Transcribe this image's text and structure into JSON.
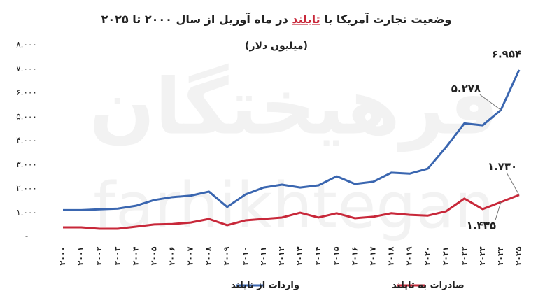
{
  "chart_data": {
    "type": "line",
    "title": [
      "وضعیت تجارت آمریکا با ",
      "تایلند",
      " در ماه آوریل از سال ۲۰۰۰ تا ۲۰۲۵"
    ],
    "subtitle": "(میلیون دلار)",
    "watermark": [
      "فرهیختگان",
      "farhikhtegan"
    ],
    "categories": [
      "۲۰۰۰",
      "۲۰۰۱",
      "۲۰۰۲",
      "۲۰۰۳",
      "۲۰۰۴",
      "۲۰۰۵",
      "۲۰۰۶",
      "۲۰۰۷",
      "۲۰۰۸",
      "۲۰۰۹",
      "۲۰۱۰",
      "۲۰۱۱",
      "۲۰۱۲",
      "۲۰۱۳",
      "۲۰۱۴",
      "۲۰۱۵",
      "۲۰۱۶",
      "۲۰۱۷",
      "۲۰۱۸",
      "۲۰۱۹",
      "۲۰۲۰",
      "۲۰۲۱",
      "۲۰۲۲",
      "۲۰۲۳",
      "۲۰۲۴",
      "۲۰۲۵"
    ],
    "series": [
      {
        "name": "واردات از تایلند",
        "color": "#3a66b0",
        "values": [
          1100,
          1100,
          1130,
          1160,
          1280,
          1520,
          1640,
          1700,
          1870,
          1230,
          1750,
          2040,
          2160,
          2040,
          2130,
          2510,
          2190,
          2280,
          2660,
          2620,
          2830,
          3730,
          4720,
          4640,
          5278,
          6954
        ],
        "value_labels": [
          null,
          null,
          null,
          null,
          null,
          null,
          null,
          null,
          null,
          null,
          null,
          null,
          null,
          null,
          null,
          null,
          null,
          null,
          null,
          null,
          null,
          null,
          null,
          null,
          "۵.۲۷۸",
          "۶.۹۵۴"
        ]
      },
      {
        "name": "صادرات به تایلند",
        "color": "#c8283a",
        "values": [
          380,
          380,
          320,
          320,
          410,
          500,
          520,
          580,
          730,
          470,
          670,
          730,
          790,
          990,
          790,
          970,
          760,
          820,
          970,
          900,
          870,
          1050,
          1580,
          1140,
          1435,
          1730
        ],
        "value_labels": [
          null,
          null,
          null,
          null,
          null,
          null,
          null,
          null,
          null,
          null,
          null,
          null,
          null,
          null,
          null,
          null,
          null,
          null,
          null,
          null,
          null,
          null,
          null,
          null,
          "۱.۴۳۵",
          "۱.۷۳۰"
        ]
      }
    ],
    "ylim": [
      0,
      8000
    ],
    "yticks": [
      {
        "value": 0,
        "label": "-"
      },
      {
        "value": 1000,
        "label": "۱.۰۰۰"
      },
      {
        "value": 2000,
        "label": "۲.۰۰۰"
      },
      {
        "value": 3000,
        "label": "۳.۰۰۰"
      },
      {
        "value": 4000,
        "label": "۴.۰۰۰"
      },
      {
        "value": 5000,
        "label": "۵.۰۰۰"
      },
      {
        "value": 6000,
        "label": "۶.۰۰۰"
      },
      {
        "value": 7000,
        "label": "۷.۰۰۰"
      },
      {
        "value": 8000,
        "label": "۸.۰۰۰"
      }
    ]
  }
}
